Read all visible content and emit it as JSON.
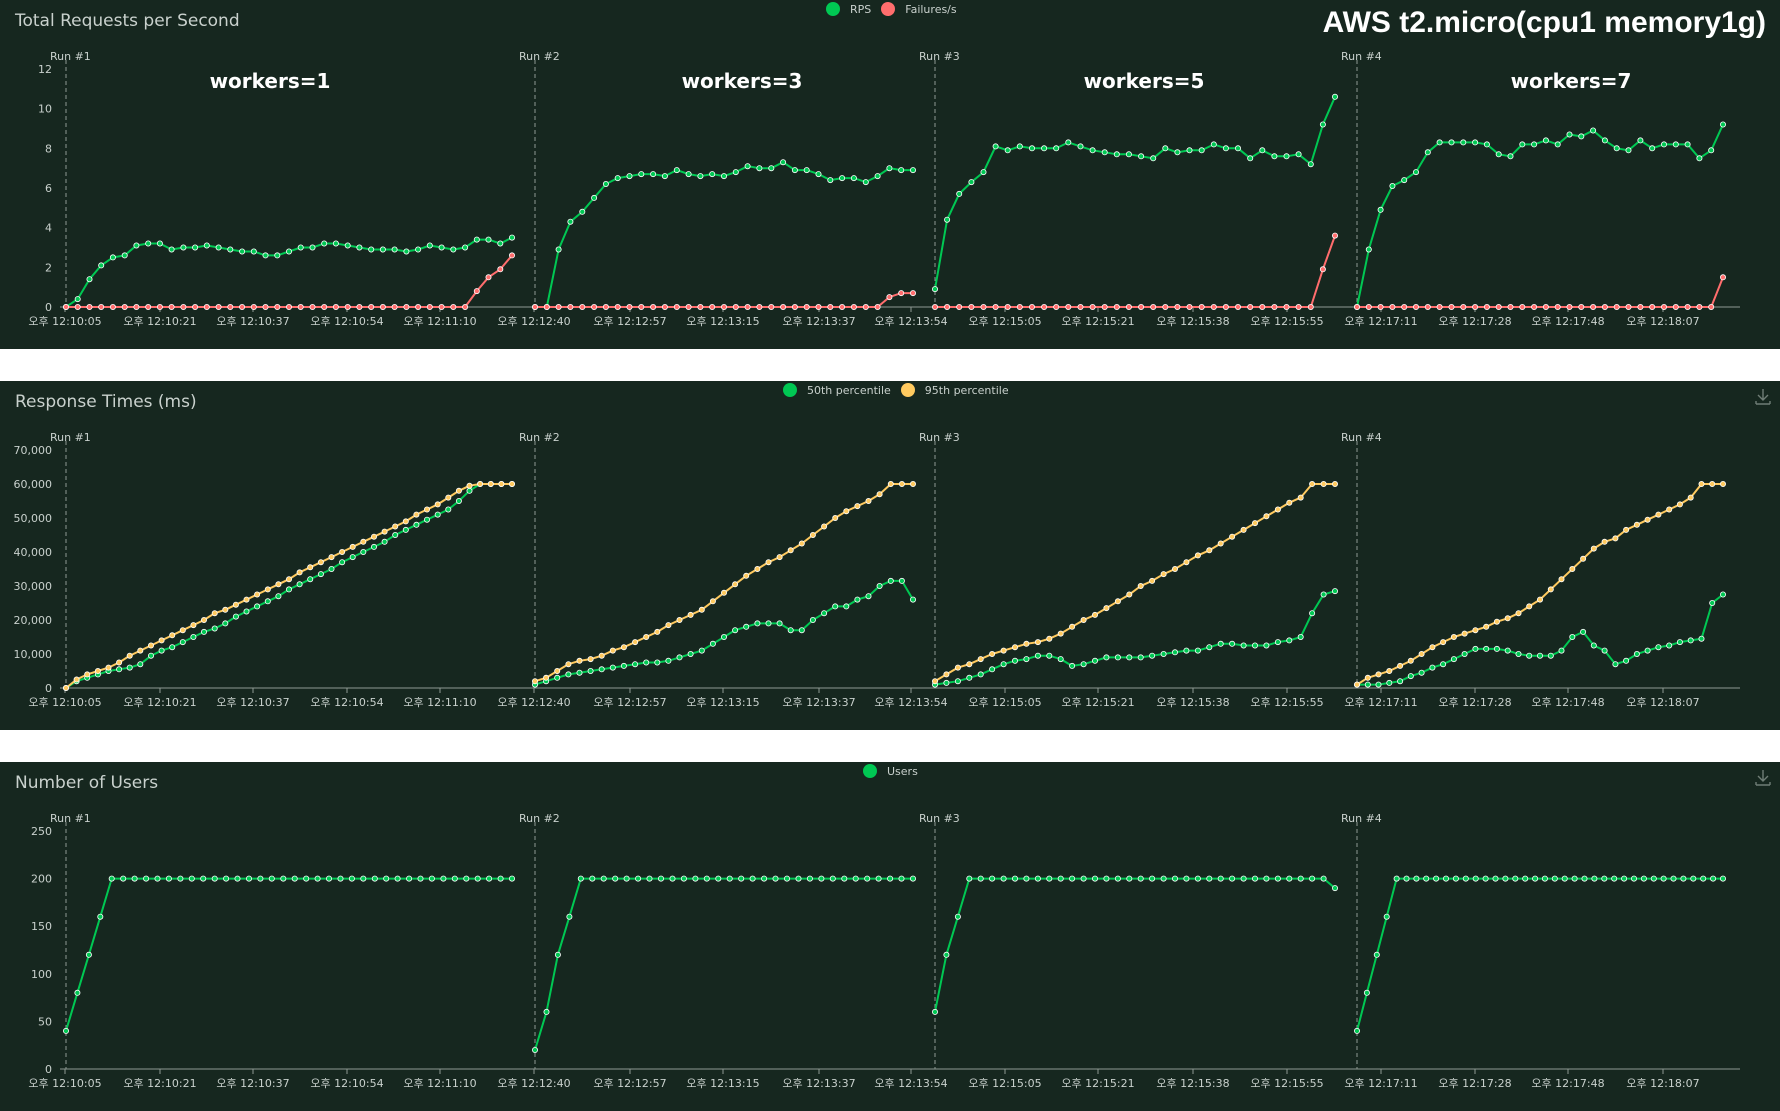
{
  "main_title": "AWS t2.micro(cpu1 memory1g)",
  "colors": {
    "background": "#16271f",
    "text": "#c9d1cd",
    "green": "#00c853",
    "red": "#ff6d6d",
    "yellow": "#ffca5f"
  },
  "chart_data": [
    {
      "type": "line",
      "title": "Total Requests per Second",
      "legend_placement": "top-center",
      "ylim": [
        0,
        12
      ],
      "y_ticks": [
        "0",
        "2",
        "4",
        "6",
        "8",
        "10",
        "12"
      ],
      "run_labels": [
        "Run #1",
        "Run #2",
        "Run #3",
        "Run #4"
      ],
      "annotations": [
        "workers=1",
        "workers=3",
        "workers=5",
        "workers=7"
      ],
      "x_tick_labels": [
        "오후 12:10:05",
        "오후 12:10:21",
        "오후 12:10:37",
        "오후 12:10:54",
        "오후 12:11:10",
        "오후 12:12:40",
        "오후 12:12:57",
        "오후 12:13:15",
        "오후 12:13:37",
        "오후 12:13:54",
        "오후 12:15:05",
        "오후 12:15:21",
        "오후 12:15:38",
        "오후 12:15:55",
        "오후 12:17:11",
        "오후 12:17:28",
        "오후 12:17:48",
        "오후 12:18:07"
      ],
      "series": [
        {
          "name": "RPS",
          "color": "#00c853",
          "runs": [
            [
              0,
              0.4,
              1.4,
              2.1,
              2.5,
              2.6,
              3.1,
              3.2,
              3.2,
              2.9,
              3.0,
              3.0,
              3.1,
              3.0,
              2.9,
              2.8,
              2.8,
              2.6,
              2.6,
              2.8,
              3.0,
              3.0,
              3.2,
              3.2,
              3.1,
              3.0,
              2.9,
              2.9,
              2.9,
              2.8,
              2.9,
              3.1,
              3.0,
              2.9,
              3.0,
              3.4,
              3.4,
              3.2,
              3.5
            ],
            [
              0,
              0,
              2.9,
              4.3,
              4.8,
              5.5,
              6.2,
              6.5,
              6.6,
              6.7,
              6.7,
              6.6,
              6.9,
              6.7,
              6.6,
              6.7,
              6.6,
              6.8,
              7.1,
              7.0,
              7.0,
              7.3,
              6.9,
              6.9,
              6.7,
              6.4,
              6.5,
              6.5,
              6.3,
              6.6,
              7.0,
              6.9,
              6.9
            ],
            [
              0.9,
              4.4,
              5.7,
              6.3,
              6.8,
              8.1,
              7.9,
              8.1,
              8.0,
              8.0,
              8.0,
              8.3,
              8.1,
              7.9,
              7.8,
              7.7,
              7.7,
              7.6,
              7.5,
              8.0,
              7.8,
              7.9,
              7.9,
              8.2,
              8.0,
              8.0,
              7.5,
              7.9,
              7.6,
              7.6,
              7.7,
              7.2,
              9.2,
              10.6
            ],
            [
              0,
              2.9,
              4.9,
              6.1,
              6.4,
              6.8,
              7.8,
              8.3,
              8.3,
              8.3,
              8.3,
              8.2,
              7.7,
              7.6,
              8.2,
              8.2,
              8.4,
              8.2,
              8.7,
              8.6,
              8.9,
              8.4,
              8.0,
              7.9,
              8.4,
              8.0,
              8.2,
              8.2,
              8.2,
              7.5,
              7.9,
              9.2
            ]
          ]
        },
        {
          "name": "Failures/s",
          "color": "#ff6d6d",
          "runs": [
            [
              0,
              0,
              0,
              0,
              0,
              0,
              0,
              0,
              0,
              0,
              0,
              0,
              0,
              0,
              0,
              0,
              0,
              0,
              0,
              0,
              0,
              0,
              0,
              0,
              0,
              0,
              0,
              0,
              0,
              0,
              0,
              0,
              0,
              0,
              0,
              0.8,
              1.5,
              1.9,
              2.6
            ],
            [
              0,
              0,
              0,
              0,
              0,
              0,
              0,
              0,
              0,
              0,
              0,
              0,
              0,
              0,
              0,
              0,
              0,
              0,
              0,
              0,
              0,
              0,
              0,
              0,
              0,
              0,
              0,
              0,
              0,
              0,
              0.5,
              0.7,
              0.7
            ],
            [
              0,
              0,
              0,
              0,
              0,
              0,
              0,
              0,
              0,
              0,
              0,
              0,
              0,
              0,
              0,
              0,
              0,
              0,
              0,
              0,
              0,
              0,
              0,
              0,
              0,
              0,
              0,
              0,
              0,
              0,
              0,
              0,
              1.9,
              3.6
            ],
            [
              0,
              0,
              0,
              0,
              0,
              0,
              0,
              0,
              0,
              0,
              0,
              0,
              0,
              0,
              0,
              0,
              0,
              0,
              0,
              0,
              0,
              0,
              0,
              0,
              0,
              0,
              0,
              0,
              0,
              0,
              0,
              1.5
            ]
          ]
        }
      ]
    },
    {
      "type": "line",
      "title": "Response Times (ms)",
      "legend_placement": "top-center",
      "ylim": [
        0,
        70000
      ],
      "y_ticks": [
        "0",
        "10,000",
        "20,000",
        "30,000",
        "40,000",
        "50,000",
        "60,000",
        "70,000"
      ],
      "run_labels": [
        "Run #1",
        "Run #2",
        "Run #3",
        "Run #4"
      ],
      "x_tick_labels": [
        "오후 12:10:05",
        "오후 12:10:21",
        "오후 12:10:37",
        "오후 12:10:54",
        "오후 12:11:10",
        "오후 12:12:40",
        "오후 12:12:57",
        "오후 12:13:15",
        "오후 12:13:37",
        "오후 12:13:54",
        "오후 12:15:05",
        "오후 12:15:21",
        "오후 12:15:38",
        "오후 12:15:55",
        "오후 12:17:11",
        "오후 12:17:28",
        "오후 12:17:48",
        "오후 12:18:07"
      ],
      "series": [
        {
          "name": "50th percentile",
          "color": "#00c853",
          "runs": [
            [
              0,
              2000,
              3000,
              4000,
              5000,
              5500,
              6000,
              7000,
              9500,
              11000,
              12000,
              13500,
              15000,
              16500,
              17500,
              19000,
              21000,
              22500,
              24000,
              25500,
              27000,
              29000,
              30500,
              32000,
              33500,
              35000,
              37000,
              38500,
              40000,
              41500,
              43000,
              45000,
              46500,
              48000,
              49500,
              51000,
              52500,
              55000,
              58000,
              60000,
              60000,
              60000,
              60000
            ],
            [
              1000,
              2000,
              3000,
              4000,
              4500,
              5000,
              5500,
              6000,
              6500,
              7000,
              7500,
              7500,
              8000,
              9000,
              10000,
              11000,
              13000,
              15000,
              17000,
              18000,
              19000,
              19000,
              19000,
              17000,
              17000,
              20000,
              22000,
              24000,
              24000,
              26000,
              27000,
              30000,
              31500,
              31500,
              26000
            ],
            [
              1000,
              1500,
              2000,
              3000,
              4000,
              5500,
              7000,
              8000,
              8500,
              9500,
              9500,
              8500,
              6500,
              7000,
              8000,
              9000,
              9000,
              9000,
              9000,
              9500,
              10000,
              10500,
              11000,
              11000,
              12000,
              13000,
              13000,
              12500,
              12500,
              12500,
              13500,
              14000,
              15000,
              22000,
              27500,
              28500
            ],
            [
              1000,
              1000,
              1000,
              1500,
              2000,
              3500,
              4500,
              6000,
              7000,
              8500,
              10000,
              11500,
              11500,
              11500,
              11000,
              10000,
              9500,
              9500,
              9500,
              11000,
              15000,
              16500,
              12500,
              11000,
              7000,
              8000,
              10000,
              11000,
              12000,
              12500,
              13500,
              14000,
              14500,
              25000,
              27500
            ]
          ]
        },
        {
          "name": "95th percentile",
          "color": "#ffca5f",
          "runs": [
            [
              0,
              2500,
              4000,
              5000,
              6000,
              7500,
              9500,
              11000,
              12500,
              14000,
              15500,
              17000,
              18500,
              20000,
              22000,
              23000,
              24500,
              26000,
              27500,
              29000,
              30500,
              32000,
              34000,
              35500,
              37000,
              38500,
              40000,
              41500,
              43000,
              44500,
              46000,
              47500,
              49000,
              51000,
              52500,
              54000,
              56000,
              58000,
              59500,
              60000,
              60000,
              60000,
              60000
            ],
            [
              2000,
              3000,
              5000,
              7000,
              8000,
              8500,
              9500,
              11000,
              12000,
              13500,
              15000,
              16500,
              18500,
              20000,
              21500,
              23000,
              25500,
              28000,
              30500,
              33000,
              35000,
              37000,
              38500,
              40500,
              42500,
              45000,
              47500,
              50000,
              52000,
              53500,
              55000,
              57000,
              60000,
              60000,
              60000
            ],
            [
              2000,
              4000,
              6000,
              7000,
              8500,
              10000,
              11000,
              12000,
              13000,
              13500,
              14500,
              16000,
              18000,
              20000,
              21500,
              23500,
              25500,
              27500,
              30000,
              31500,
              33500,
              35000,
              37000,
              39000,
              40500,
              42500,
              44500,
              46500,
              48500,
              50500,
              52500,
              54500,
              56000,
              60000,
              60000,
              60000
            ],
            [
              1000,
              3000,
              4000,
              5000,
              6500,
              8000,
              10000,
              12000,
              13500,
              15000,
              16000,
              17000,
              18000,
              19500,
              20500,
              22000,
              24000,
              26000,
              29000,
              32000,
              35000,
              38000,
              41000,
              43000,
              44000,
              46500,
              48000,
              49500,
              51000,
              52500,
              54000,
              56000,
              60000,
              60000,
              60000
            ]
          ]
        }
      ]
    },
    {
      "type": "line",
      "title": "Number of Users",
      "legend_placement": "top-center",
      "ylim": [
        0,
        250
      ],
      "y_ticks": [
        "0",
        "50",
        "100",
        "150",
        "200",
        "250"
      ],
      "run_labels": [
        "Run #1",
        "Run #2",
        "Run #3",
        "Run #4"
      ],
      "x_tick_labels": [
        "오후 12:10:05",
        "오후 12:10:21",
        "오후 12:10:37",
        "오후 12:10:54",
        "오후 12:11:10",
        "오후 12:12:40",
        "오후 12:12:57",
        "오후 12:13:15",
        "오후 12:13:37",
        "오후 12:13:54",
        "오후 12:15:05",
        "오후 12:15:21",
        "오후 12:15:38",
        "오후 12:15:55",
        "오후 12:17:11",
        "오후 12:17:28",
        "오후 12:17:48",
        "오후 12:18:07"
      ],
      "series": [
        {
          "name": "Users",
          "color": "#00c853",
          "runs": [
            [
              40,
              80,
              120,
              160,
              200,
              200,
              200,
              200,
              200,
              200,
              200,
              200,
              200,
              200,
              200,
              200,
              200,
              200,
              200,
              200,
              200,
              200,
              200,
              200,
              200,
              200,
              200,
              200,
              200,
              200,
              200,
              200,
              200,
              200,
              200,
              200,
              200,
              200,
              200,
              200
            ],
            [
              20,
              60,
              120,
              160,
              200,
              200,
              200,
              200,
              200,
              200,
              200,
              200,
              200,
              200,
              200,
              200,
              200,
              200,
              200,
              200,
              200,
              200,
              200,
              200,
              200,
              200,
              200,
              200,
              200,
              200,
              200,
              200,
              200,
              200
            ],
            [
              60,
              120,
              160,
              200,
              200,
              200,
              200,
              200,
              200,
              200,
              200,
              200,
              200,
              200,
              200,
              200,
              200,
              200,
              200,
              200,
              200,
              200,
              200,
              200,
              200,
              200,
              200,
              200,
              200,
              200,
              200,
              200,
              200,
              200,
              200,
              190
            ],
            [
              40,
              80,
              120,
              160,
              200,
              200,
              200,
              200,
              200,
              200,
              200,
              200,
              200,
              200,
              200,
              200,
              200,
              200,
              200,
              200,
              200,
              200,
              200,
              200,
              200,
              200,
              200,
              200,
              200,
              200,
              200,
              200,
              200,
              200,
              200,
              200,
              200,
              200
            ]
          ]
        }
      ]
    }
  ]
}
